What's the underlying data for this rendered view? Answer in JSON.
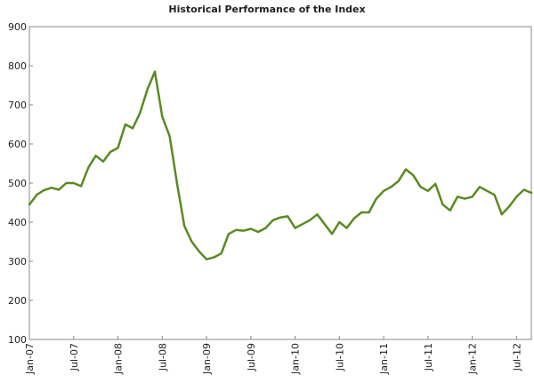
{
  "chart_data": {
    "type": "line",
    "title": "Historical Performance of the Index",
    "categories": [
      "Jan-07",
      null,
      null,
      null,
      null,
      null,
      "Jul-07",
      null,
      null,
      null,
      null,
      null,
      "Jan-08",
      null,
      null,
      null,
      null,
      null,
      "Jul-08",
      null,
      null,
      null,
      null,
      null,
      "Jan-09",
      null,
      null,
      null,
      null,
      null,
      "Jul-09",
      null,
      null,
      null,
      null,
      null,
      "Jan-10",
      null,
      null,
      null,
      null,
      null,
      "Jul-10",
      null,
      null,
      null,
      null,
      null,
      "Jan-11",
      null,
      null,
      null,
      null,
      null,
      "Jul-11",
      null,
      null,
      null,
      null,
      null,
      "Jan-12",
      null,
      null,
      null,
      null,
      null,
      "Jul-12",
      null,
      null
    ],
    "values": [
      445,
      470,
      482,
      488,
      483,
      500,
      500,
      492,
      540,
      570,
      555,
      580,
      590,
      650,
      640,
      680,
      740,
      785,
      670,
      620,
      500,
      390,
      350,
      325,
      305,
      310,
      320,
      370,
      380,
      378,
      383,
      375,
      385,
      405,
      412,
      415,
      385,
      395,
      405,
      420,
      395,
      370,
      400,
      385,
      410,
      425,
      425,
      460,
      480,
      490,
      505,
      535,
      520,
      490,
      480,
      498,
      445,
      430,
      465,
      460,
      465,
      490,
      480,
      470,
      420,
      440,
      465,
      483,
      475
    ],
    "color": "#5a8a22",
    "ylim": [
      100,
      900
    ],
    "yticks": [
      100,
      200,
      300,
      400,
      500,
      600,
      700,
      800,
      900
    ],
    "grid": false
  }
}
